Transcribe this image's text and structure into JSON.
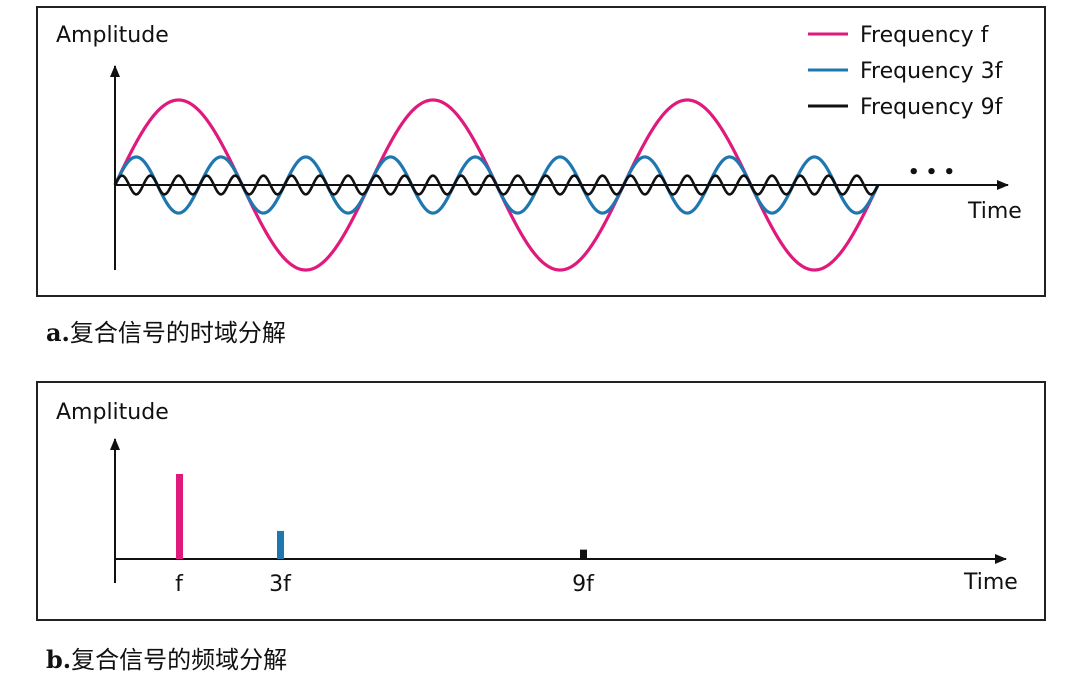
{
  "chart_data": [
    {
      "type": "line",
      "ylabel": "Amplitude",
      "xlabel": "Time",
      "continuation": "• • •",
      "series": [
        {
          "name": "Frequency f",
          "color": "#e0197d",
          "frequency_multiple": 1,
          "amplitude": 1.0,
          "cycles": 3
        },
        {
          "name": "Frequency 3f",
          "color": "#1f77b0",
          "frequency_multiple": 3,
          "amplitude": 0.33,
          "cycles": 9
        },
        {
          "name": "Frequency 9f",
          "color": "#111111",
          "frequency_multiple": 9,
          "amplitude": 0.11,
          "cycles": 27
        }
      ],
      "caption_prefix": "a.",
      "caption": "复合信号的时域分解"
    },
    {
      "type": "bar",
      "ylabel": "Amplitude",
      "xlabel": "Time",
      "categories": [
        "f",
        "3f",
        "9f"
      ],
      "x": [
        1,
        3,
        9
      ],
      "values": [
        1.0,
        0.33,
        0.11
      ],
      "colors": [
        "#e0197d",
        "#1f77b0",
        "#111111"
      ],
      "caption_prefix": "b.",
      "caption": "复合信号的频域分解"
    }
  ]
}
